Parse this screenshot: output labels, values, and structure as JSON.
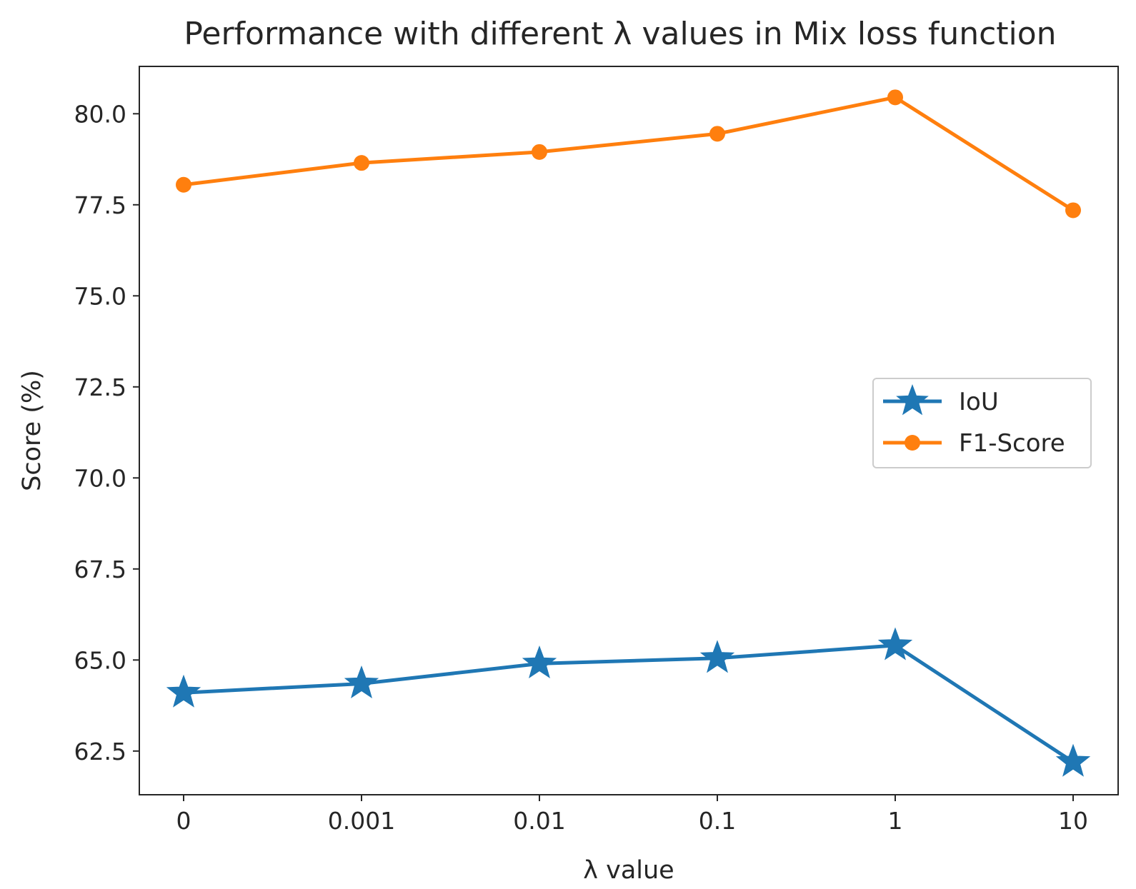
{
  "chart_data": {
    "type": "line",
    "title": "Performance with different  λ values in Mix loss function",
    "xlabel": "λ value",
    "ylabel": "Score (%)",
    "categories": [
      "0",
      "0.001",
      "0.01",
      "0.1",
      "1",
      "10"
    ],
    "ylim": [
      61.3,
      81.3
    ],
    "yticks": [
      "62.5",
      "65.0",
      "67.5",
      "70.0",
      "72.5",
      "75.0",
      "77.5",
      "80.0"
    ],
    "grid": false,
    "legend_position": "center-right",
    "series": [
      {
        "name": "IoU",
        "marker": "star",
        "color": "#1f77b4",
        "values": [
          64.1,
          64.35,
          64.9,
          65.05,
          65.4,
          62.2
        ]
      },
      {
        "name": "F1-Score",
        "marker": "circle",
        "color": "#ff7f0e",
        "values": [
          78.05,
          78.65,
          78.95,
          79.45,
          80.45,
          77.35
        ]
      }
    ]
  }
}
